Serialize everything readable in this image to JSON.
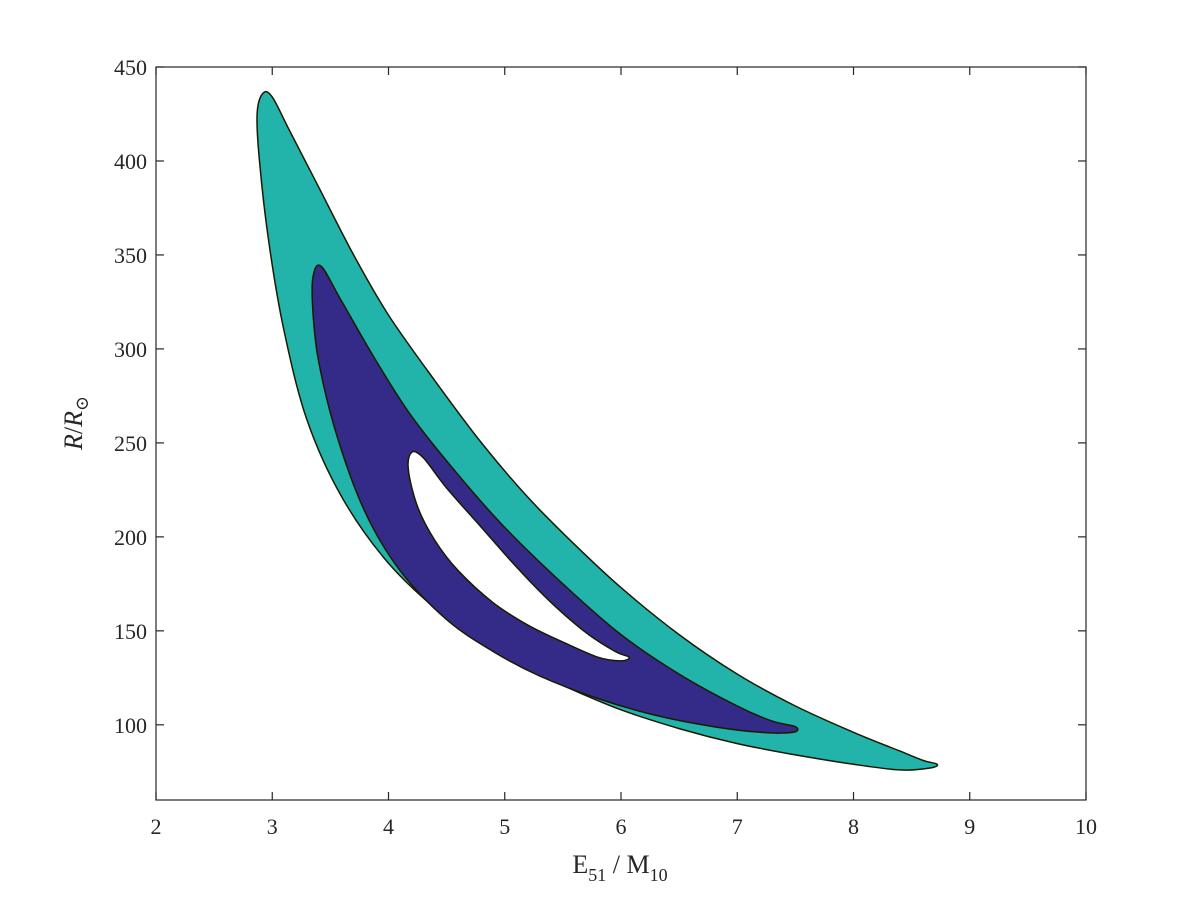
{
  "chart_data": {
    "type": "contour",
    "xlabel": {
      "base": "E",
      "sub": "51",
      "sep": " / M",
      "sub2": "10"
    },
    "ylabel": {
      "r": "R",
      "slash": "/",
      "rsun": "R",
      "sun": "⊙"
    },
    "xlim": [
      2,
      10
    ],
    "ylim": [
      60,
      450
    ],
    "xticks": [
      2,
      3,
      4,
      5,
      6,
      7,
      8,
      9,
      10
    ],
    "yticks": [
      100,
      150,
      200,
      250,
      300,
      350,
      400,
      450
    ],
    "grid": false,
    "colors": {
      "outer": "#22b3aa",
      "inner": "#342a88",
      "hole": "#ffffff",
      "edge": "#1a1a00",
      "axis": "#262626"
    },
    "regions": [
      {
        "level": "outer",
        "points": [
          [
            2.92,
            436
          ],
          [
            3.0,
            434
          ],
          [
            3.15,
            416
          ],
          [
            3.4,
            386
          ],
          [
            3.7,
            350
          ],
          [
            4.0,
            318
          ],
          [
            4.4,
            283
          ],
          [
            4.8,
            250
          ],
          [
            5.2,
            221
          ],
          [
            5.6,
            196
          ],
          [
            6.0,
            173
          ],
          [
            6.5,
            148
          ],
          [
            7.0,
            127
          ],
          [
            7.5,
            110
          ],
          [
            8.0,
            96
          ],
          [
            8.4,
            86
          ],
          [
            8.6,
            81
          ],
          [
            8.72,
            79
          ],
          [
            8.66,
            77
          ],
          [
            8.4,
            76
          ],
          [
            8.0,
            79
          ],
          [
            7.5,
            84
          ],
          [
            7.0,
            90
          ],
          [
            6.5,
            98
          ],
          [
            6.0,
            108
          ],
          [
            5.5,
            121
          ],
          [
            5.0,
            136
          ],
          [
            4.5,
            157
          ],
          [
            4.0,
            186
          ],
          [
            3.6,
            221
          ],
          [
            3.3,
            262
          ],
          [
            3.1,
            310
          ],
          [
            2.97,
            357
          ],
          [
            2.89,
            400
          ],
          [
            2.87,
            425
          ]
        ]
      },
      {
        "level": "inner",
        "points": [
          [
            3.42,
            344
          ],
          [
            3.6,
            325
          ],
          [
            3.9,
            293
          ],
          [
            4.2,
            264
          ],
          [
            4.6,
            233
          ],
          [
            5.0,
            205
          ],
          [
            5.5,
            175
          ],
          [
            6.0,
            148
          ],
          [
            6.5,
            127
          ],
          [
            7.0,
            110
          ],
          [
            7.3,
            102
          ],
          [
            7.5,
            99
          ],
          [
            7.48,
            96
          ],
          [
            7.2,
            96
          ],
          [
            6.8,
            99
          ],
          [
            6.3,
            105
          ],
          [
            5.8,
            114
          ],
          [
            5.3,
            126
          ],
          [
            4.9,
            139
          ],
          [
            4.5,
            156
          ],
          [
            4.1,
            182
          ],
          [
            3.8,
            213
          ],
          [
            3.56,
            253
          ],
          [
            3.4,
            293
          ],
          [
            3.35,
            320
          ],
          [
            3.35,
            338
          ]
        ]
      },
      {
        "level": "hole",
        "points": [
          [
            4.2,
            245
          ],
          [
            4.3,
            242
          ],
          [
            4.5,
            226
          ],
          [
            4.8,
            205
          ],
          [
            5.1,
            184
          ],
          [
            5.4,
            165
          ],
          [
            5.7,
            149
          ],
          [
            5.95,
            139
          ],
          [
            6.07,
            136
          ],
          [
            6.0,
            134
          ],
          [
            5.8,
            136
          ],
          [
            5.5,
            144
          ],
          [
            5.2,
            153
          ],
          [
            4.9,
            165
          ],
          [
            4.6,
            182
          ],
          [
            4.4,
            198
          ],
          [
            4.25,
            216
          ],
          [
            4.17,
            236
          ]
        ]
      }
    ]
  }
}
